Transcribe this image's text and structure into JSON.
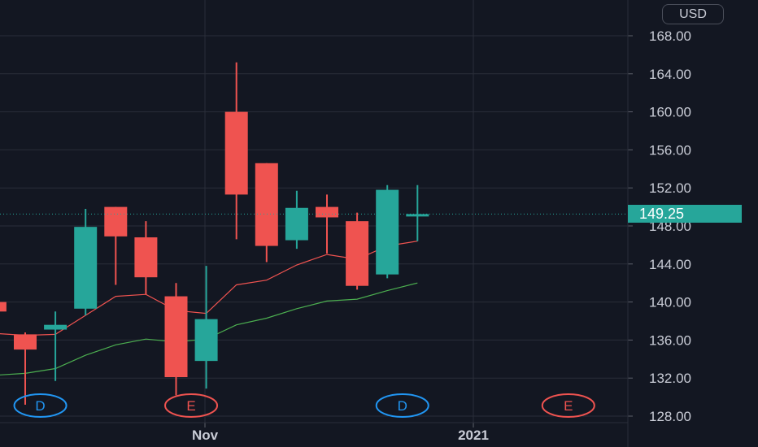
{
  "currency": "USD",
  "last_price_label": "149.25",
  "colors": {
    "up": "#26a69a",
    "down": "#ef5350",
    "ma_fast": "#ef5350",
    "ma_slow": "#4caf50",
    "background": "#131722",
    "grid": "#2a2e39"
  },
  "chart_data": {
    "type": "candlestick",
    "y_axis_ticks": [
      "128.00",
      "132.00",
      "136.00",
      "140.00",
      "144.00",
      "148.00",
      "152.00",
      "156.00",
      "160.00",
      "164.00",
      "168.00"
    ],
    "ylim": [
      128,
      170
    ],
    "x_axis_labels": [
      "Nov",
      "2021"
    ],
    "last_price": 149.25,
    "candles": [
      {
        "open": 140.0,
        "high": 140.0,
        "low": 139.0,
        "close": 139.0
      },
      {
        "open": 136.6,
        "high": 136.8,
        "low": 129.2,
        "close": 135.0
      },
      {
        "open": 137.1,
        "high": 139.0,
        "low": 131.7,
        "close": 137.6
      },
      {
        "open": 139.3,
        "high": 149.8,
        "low": 138.6,
        "close": 147.9
      },
      {
        "open": 150.0,
        "high": 150.0,
        "low": 141.8,
        "close": 146.9
      },
      {
        "open": 146.8,
        "high": 148.5,
        "low": 140.8,
        "close": 142.6
      },
      {
        "open": 140.6,
        "high": 142.0,
        "low": 130.2,
        "close": 132.1
      },
      {
        "open": 133.8,
        "high": 143.8,
        "low": 130.9,
        "close": 138.2
      },
      {
        "open": 160.0,
        "high": 165.2,
        "low": 146.6,
        "close": 151.3
      },
      {
        "open": 154.6,
        "high": 154.6,
        "low": 144.2,
        "close": 145.9
      },
      {
        "open": 146.5,
        "high": 151.7,
        "low": 145.6,
        "close": 149.9
      },
      {
        "open": 150.0,
        "high": 151.3,
        "low": 145.1,
        "close": 148.9
      },
      {
        "open": 148.5,
        "high": 149.4,
        "low": 141.3,
        "close": 141.7
      },
      {
        "open": 142.9,
        "high": 152.3,
        "low": 142.5,
        "close": 151.8
      },
      {
        "open": 149.0,
        "high": 152.3,
        "low": 146.4,
        "close": 149.25
      }
    ],
    "ma_fast": [
      136.7,
      136.5,
      136.6,
      138.6,
      140.6,
      140.8,
      139.1,
      138.8,
      141.8,
      142.3,
      143.9,
      145.0,
      144.5,
      145.9,
      146.4
    ],
    "ma_slow": [
      132.3,
      132.5,
      133.0,
      134.4,
      135.5,
      136.1,
      135.8,
      136.1,
      137.6,
      138.3,
      139.3,
      140.1,
      140.3,
      141.2,
      142.0
    ],
    "markers": [
      {
        "label": "D",
        "color": "#2196f3",
        "slot": 1.5
      },
      {
        "label": "E",
        "color": "#ef5350",
        "slot": 6.5
      },
      {
        "label": "D",
        "color": "#2196f3",
        "slot": 13.5
      },
      {
        "label": "E",
        "color": "#ef5350",
        "slot": 19
      }
    ]
  }
}
